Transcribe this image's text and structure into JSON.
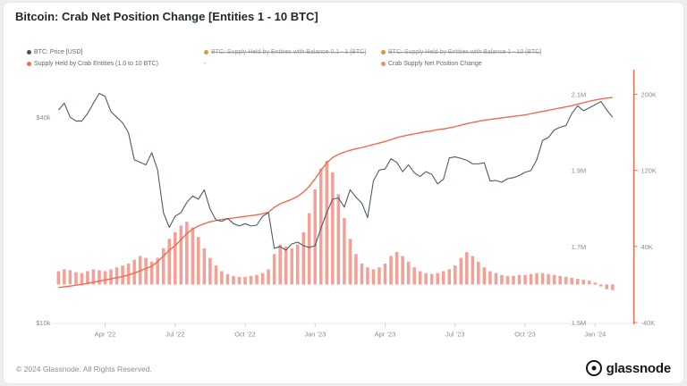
{
  "header": {
    "title": "Bitcoin: Crab Net Position Change [Entities 1 - 10 BTC]"
  },
  "legend": {
    "items": [
      {
        "label": "BTC: Price [USD]",
        "color": "#47525b",
        "disabled": false
      },
      {
        "label": "BTC: Supply Held by Entities with Balance 0.1 - 1 [BTC]",
        "color": "#e0953e",
        "disabled": true
      },
      {
        "label": "BTC: Supply Held by Entities with Balance 1 - 10 [BTC]",
        "color": "#e0953e",
        "disabled": true
      },
      {
        "label": "Supply Held by Crab Entities (1.0 to 10 BTC)",
        "color": "#f4694e",
        "disabled": false
      },
      {
        "label": "-",
        "color": null,
        "disabled": false
      },
      {
        "label": "Crab Supply Net Position Change",
        "color": "#f18979",
        "disabled": false
      }
    ]
  },
  "footer": {
    "copyright": "© 2024 Glassnode. All Rights Reserved.",
    "brand": "glassnode"
  },
  "chart_data": {
    "type": "mixed",
    "title": "Bitcoin: Crab Net Position Change [Entities 1 - 10 BTC]",
    "x_unit": "4 points per month, Feb 2022 through Jan 2024",
    "x_ticks": [
      {
        "index": 8,
        "label": "Apr ’22"
      },
      {
        "index": 20,
        "label": "Jul ’22"
      },
      {
        "index": 32,
        "label": "Oct ’22"
      },
      {
        "index": 44,
        "label": "Jan ’23"
      },
      {
        "index": 56,
        "label": "Apr ’23"
      },
      {
        "index": 68,
        "label": "Jul ’23"
      },
      {
        "index": 80,
        "label": "Oct ’23"
      },
      {
        "index": 92,
        "label": "Jan ’24"
      }
    ],
    "axes": {
      "price": {
        "side": "left",
        "scale": "log",
        "unit": "USD",
        "ticks": [
          {
            "value": 40000,
            "label": "$40k"
          },
          {
            "value": 10000,
            "label": "$10k"
          }
        ]
      },
      "supply": {
        "side": "right-inner",
        "scale": "linear",
        "unit": "M BTC",
        "ticks": [
          {
            "value": 2.1,
            "label": "2.1M"
          },
          {
            "value": 1.9,
            "label": "1.9M"
          },
          {
            "value": 1.7,
            "label": "1.7M"
          },
          {
            "value": 1.5,
            "label": "1.5M"
          }
        ]
      },
      "npc": {
        "side": "right-outer",
        "scale": "linear",
        "unit": "K BTC",
        "ticks": [
          {
            "value": 200,
            "label": "200K"
          },
          {
            "value": 120,
            "label": "120K"
          },
          {
            "value": 40,
            "label": "40K"
          },
          {
            "value": -40,
            "label": "-40K"
          }
        ]
      }
    },
    "series": [
      {
        "name": "BTC: Price [USD]",
        "type": "line",
        "axis": "price",
        "color": "#4d5a63",
        "values": [
          42000,
          44000,
          40000,
          39000,
          39000,
          41000,
          44000,
          47000,
          46000,
          41500,
          40000,
          38500,
          36000,
          30000,
          29500,
          29000,
          31500,
          28000,
          21000,
          19000,
          20500,
          21000,
          22500,
          23500,
          23000,
          24500,
          21500,
          20000,
          19800,
          20200,
          19500,
          19200,
          19500,
          19200,
          19300,
          20500,
          21000,
          16500,
          16700,
          16300,
          17000,
          17200,
          16800,
          16600,
          16800,
          18900,
          21000,
          23000,
          23200,
          21800,
          24500,
          23300,
          22400,
          20300,
          26000,
          28000,
          28200,
          30200,
          29500,
          27700,
          29000,
          27500,
          26800,
          27700,
          27200,
          25500,
          26300,
          30400,
          30600,
          30300,
          29900,
          29200,
          29200,
          29400,
          26000,
          26100,
          25800,
          26400,
          26600,
          27000,
          27600,
          27900,
          30000,
          34200,
          34900,
          36700,
          37400,
          37800,
          41000,
          43200,
          41800,
          42600,
          43500,
          44500,
          42000,
          40000
        ]
      },
      {
        "name": "Supply Held by Crab Entities (1.0 to 10 BTC)",
        "type": "line",
        "axis": "supply",
        "color": "#f4694e",
        "values": [
          1.592,
          1.594,
          1.596,
          1.598,
          1.6,
          1.603,
          1.606,
          1.609,
          1.612,
          1.615,
          1.618,
          1.621,
          1.625,
          1.63,
          1.636,
          1.642,
          1.648,
          1.66,
          1.675,
          1.69,
          1.702,
          1.718,
          1.734,
          1.746,
          1.754,
          1.76,
          1.765,
          1.768,
          1.771,
          1.773,
          1.775,
          1.777,
          1.779,
          1.781,
          1.783,
          1.786,
          1.79,
          1.803,
          1.812,
          1.818,
          1.824,
          1.832,
          1.843,
          1.858,
          1.878,
          1.9,
          1.92,
          1.934,
          1.942,
          1.948,
          1.953,
          1.957,
          1.96,
          1.964,
          1.968,
          1.972,
          1.976,
          1.981,
          1.986,
          1.99,
          1.993,
          1.996,
          1.999,
          2.002,
          2.004,
          2.007,
          2.009,
          2.012,
          2.015,
          2.019,
          2.023,
          2.026,
          2.029,
          2.032,
          2.034,
          2.036,
          2.038,
          2.04,
          2.042,
          2.044,
          2.046,
          2.049,
          2.052,
          2.055,
          2.058,
          2.061,
          2.064,
          2.067,
          2.07,
          2.074,
          2.078,
          2.082,
          2.085,
          2.088,
          2.09,
          2.092
        ]
      },
      {
        "name": "Crab Supply Net Position Change",
        "type": "bar",
        "axis": "npc",
        "color": "#ef7d6d",
        "values": [
          14,
          16,
          15,
          13,
          12,
          14,
          16,
          15,
          14,
          16,
          18,
          20,
          22,
          26,
          30,
          28,
          24,
          28,
          38,
          48,
          55,
          62,
          66,
          60,
          50,
          38,
          28,
          20,
          14,
          11,
          9,
          8,
          8,
          9,
          10,
          12,
          16,
          32,
          42,
          40,
          38,
          42,
          55,
          75,
          100,
          122,
          130,
          118,
          95,
          70,
          48,
          32,
          22,
          18,
          16,
          18,
          22,
          30,
          34,
          30,
          24,
          18,
          14,
          12,
          11,
          12,
          14,
          16,
          20,
          28,
          34,
          30,
          24,
          18,
          14,
          12,
          10,
          9,
          9,
          10,
          10,
          11,
          12,
          12,
          11,
          10,
          9,
          8,
          7,
          6,
          5,
          4,
          2,
          -2,
          -5,
          -6
        ]
      }
    ]
  }
}
